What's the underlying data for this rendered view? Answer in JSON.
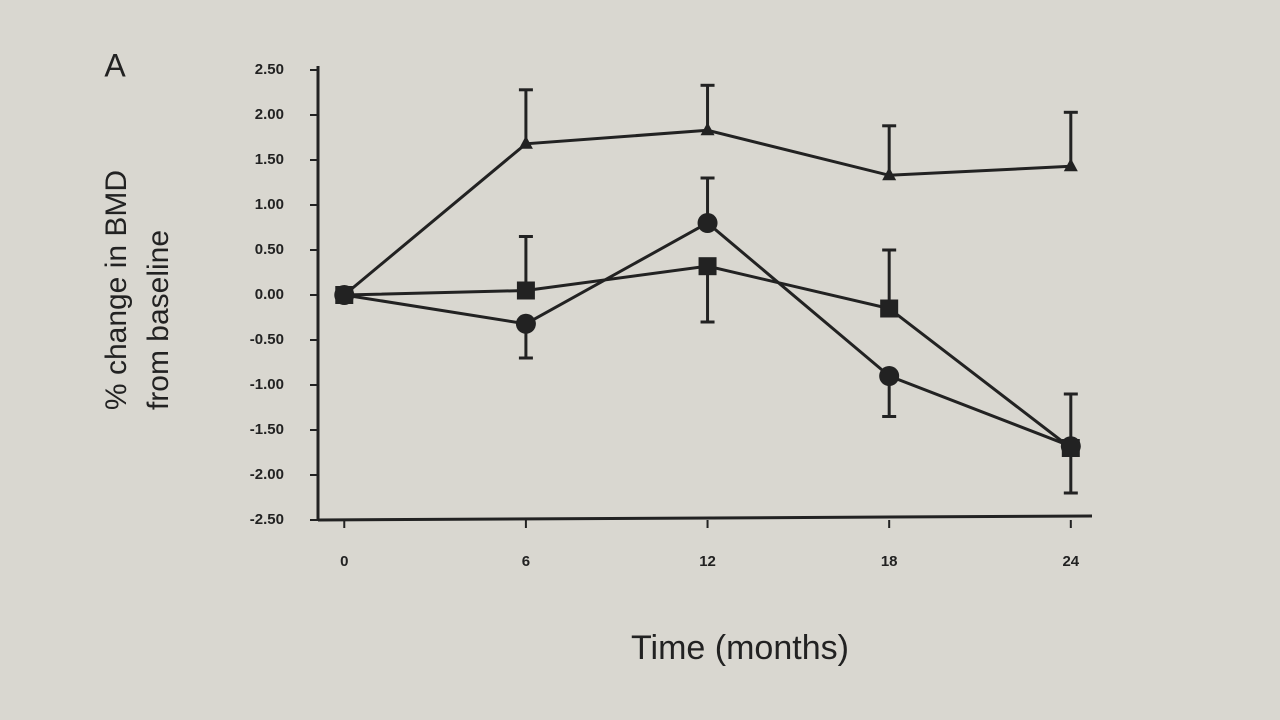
{
  "chart_data": {
    "type": "line",
    "panel_label": "A",
    "ylabel": [
      "% change in BMD",
      "from baseline"
    ],
    "xlabel": "Time (months)",
    "x": [
      0,
      6,
      12,
      18,
      24
    ],
    "series": [
      {
        "color": "#222222",
        "marker": "triangle",
        "values": [
          0,
          1.68,
          1.83,
          1.33,
          1.43
        ],
        "error_plus": [
          null,
          0.6,
          0.5,
          0.55,
          0.6
        ],
        "error_minus": [
          null,
          null,
          null,
          null,
          null
        ]
      },
      {
        "color": "#222222",
        "marker": "square",
        "values": [
          0,
          0.05,
          0.32,
          -0.15,
          -1.7
        ],
        "error_plus": [
          null,
          0.6,
          null,
          0.65,
          null
        ],
        "error_minus": [
          null,
          null,
          0.62,
          null,
          0.5
        ]
      },
      {
        "color": "#222222",
        "marker": "circle",
        "values": [
          0,
          -0.32,
          0.8,
          -0.9,
          -1.68
        ],
        "error_plus": [
          null,
          null,
          0.5,
          null,
          0.58
        ],
        "error_minus": [
          null,
          0.38,
          null,
          0.45,
          null
        ]
      }
    ],
    "xlim": [
      -1,
      24.7
    ],
    "xticks": [
      0,
      6,
      12,
      18,
      24
    ],
    "ylim": [
      -2.5,
      2.5
    ],
    "yticks": [
      {
        "value": 2.5,
        "label": "2.50"
      },
      {
        "value": 2,
        "label": "2.00"
      },
      {
        "value": 1.5,
        "label": "1.50"
      },
      {
        "value": 1,
        "label": "1.00"
      },
      {
        "value": 0.5,
        "label": "0.50"
      },
      {
        "value": 0,
        "label": "0.00"
      },
      {
        "value": -0.5,
        "label": "-0.50"
      },
      {
        "value": -1,
        "label": "-1.00"
      },
      {
        "value": -1.5,
        "label": "-1.50"
      },
      {
        "value": -2,
        "label": "-2.00"
      },
      {
        "value": -2.5,
        "label": "-2.50"
      }
    ],
    "grid": false
  }
}
